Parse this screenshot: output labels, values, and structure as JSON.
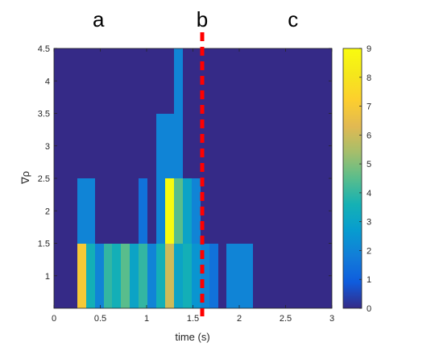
{
  "chart_data": {
    "type": "heatmap",
    "title": "",
    "xlabel": "time (s)",
    "ylabel": "∇ρ",
    "xlim": [
      0,
      3
    ],
    "ylim": [
      0.5,
      4.5
    ],
    "xticks": [
      0,
      0.5,
      1,
      1.5,
      2,
      2.5,
      3
    ],
    "xtick_labels": [
      "0",
      "0.5",
      "1",
      "1.5",
      "2",
      "2.5",
      "3"
    ],
    "yticks": [
      1,
      1.5,
      2,
      2.5,
      3,
      3.5,
      4,
      4.5
    ],
    "ytick_labels": [
      "1",
      "1.5",
      "2",
      "2.5",
      "3",
      "3.5",
      "4",
      "4.5"
    ],
    "colorbar": {
      "min": 0,
      "max": 9,
      "ticks": [
        0,
        1,
        2,
        3,
        4,
        5,
        6,
        7,
        8,
        9
      ],
      "tick_labels": [
        "0",
        "1",
        "2",
        "3",
        "4",
        "5",
        "6",
        "7",
        "8",
        "9"
      ],
      "colormap": "parula"
    },
    "x_bin_width": 0.095,
    "x_bin_starts": [
      0.25,
      0.345,
      0.44,
      0.535,
      0.63,
      0.725,
      0.82,
      0.915,
      1.01,
      1.105,
      1.2,
      1.295,
      1.39,
      1.485,
      1.58,
      1.675,
      1.77,
      1.865,
      1.96,
      2.055
    ],
    "y_bins": [
      {
        "start": 0.5,
        "end": 1.5
      },
      {
        "start": 1.5,
        "end": 2.5
      },
      {
        "start": 2.5,
        "end": 3.5
      },
      {
        "start": 3.5,
        "end": 4.5
      }
    ],
    "values": [
      [
        7,
        3.5,
        2,
        4,
        3.5,
        4.5,
        3,
        4,
        2,
        3.5,
        6,
        3,
        3.5,
        2.5,
        2,
        1.5,
        0,
        2,
        2,
        2
      ],
      [
        2,
        2,
        0,
        0,
        0,
        0,
        0,
        1.5,
        0,
        2,
        9,
        4.5,
        3,
        2,
        0,
        0,
        0,
        0,
        0,
        0
      ],
      [
        0,
        0,
        0,
        0,
        0,
        0,
        0,
        0,
        0,
        2,
        2,
        2,
        0,
        0,
        0,
        0,
        0,
        0,
        0,
        0
      ],
      [
        0,
        0,
        0,
        0,
        0,
        0,
        0,
        0,
        0,
        0,
        0,
        2,
        0,
        0,
        0,
        0,
        0,
        0,
        0,
        0
      ]
    ],
    "marker_line": {
      "x": 1.6,
      "color": "#ff0000",
      "style": "dashed"
    },
    "region_labels": [
      {
        "text": "a",
        "x": 0.48
      },
      {
        "text": "b",
        "x": 1.6
      },
      {
        "text": "c",
        "x": 2.58
      }
    ],
    "grid": false,
    "legend": "none"
  }
}
